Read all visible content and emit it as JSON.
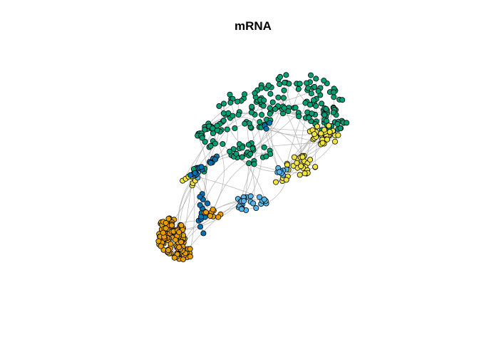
{
  "figure": {
    "title": "mRNA"
  },
  "colors": {
    "edge": "#a9a9a9",
    "node_stroke": "#000000",
    "groups": {
      "green": "#009E73",
      "yellow": "#F0E442",
      "light_blue": "#56B4E9",
      "dark_blue": "#0072B2",
      "orange": "#E69F00"
    }
  },
  "network": {
    "description_groups": [
      "green",
      "yellow",
      "light_blue",
      "dark_blue",
      "orange"
    ]
  }
}
